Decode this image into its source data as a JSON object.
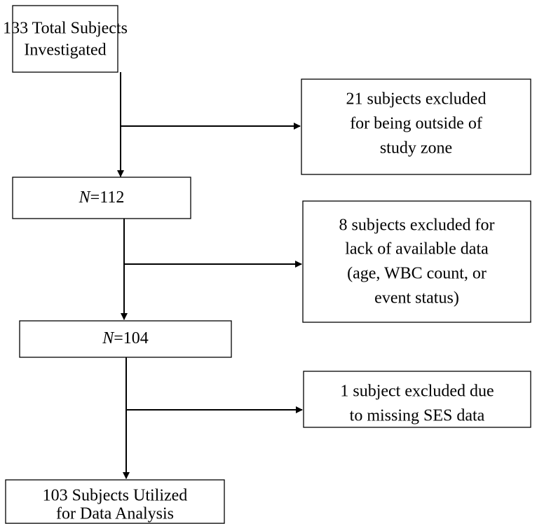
{
  "nodes": [
    {
      "lines": [
        "133 Total Subjects",
        "Investigated"
      ]
    },
    {
      "lines": [
        "21 subjects excluded",
        "for being outside of",
        "study zone"
      ]
    },
    {
      "symbol": "N",
      "text": "=112"
    },
    {
      "lines": [
        "8 subjects excluded for",
        "lack of available data",
        "(age, WBC count, or",
        "event status)"
      ]
    },
    {
      "symbol": "N",
      "text": "=104"
    },
    {
      "lines": [
        "1 subject excluded due",
        "to missing SES data"
      ]
    },
    {
      "lines": [
        "103 Subjects Utilized",
        "for Data Analysis"
      ]
    }
  ]
}
